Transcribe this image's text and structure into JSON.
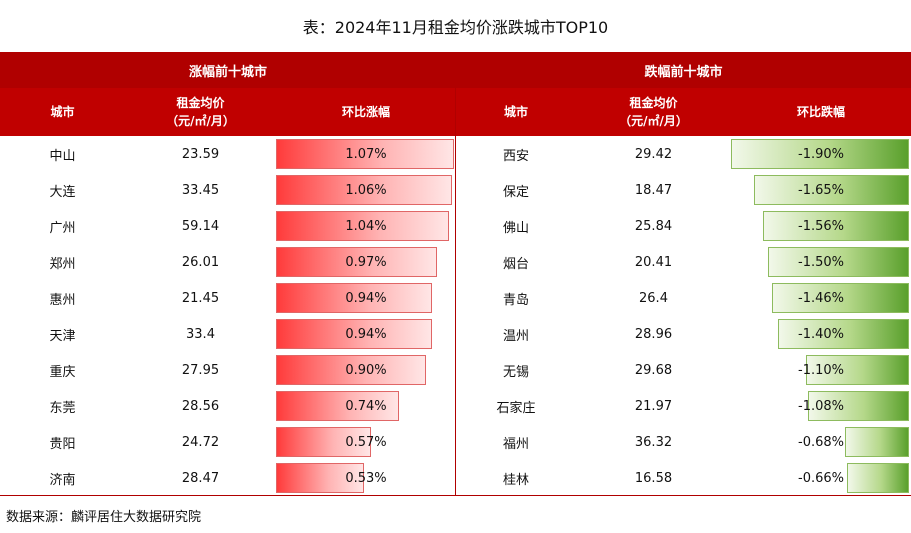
{
  "title": "表：2024年11月租金均价涨跌城市TOP10",
  "source": "数据来源：麟评居住大数据研究院",
  "colors": {
    "header_dark": "#b00000",
    "header": "#c00000",
    "rise": "#ff3b3b",
    "fall": "#5aa02c"
  },
  "chart_data": {
    "type": "table",
    "title": "表：2024年11月租金均价涨跌城市TOP10",
    "groups": [
      {
        "name": "涨幅前十城市",
        "columns": [
          "城市",
          "租金均价",
          "（元/㎡/月）",
          "环比涨幅"
        ],
        "rows": [
          {
            "city": "中山",
            "price": "23.59",
            "change": 1.07,
            "change_label": "1.07%"
          },
          {
            "city": "大连",
            "price": "33.45",
            "change": 1.06,
            "change_label": "1.06%"
          },
          {
            "city": "广州",
            "price": "59.14",
            "change": 1.04,
            "change_label": "1.04%"
          },
          {
            "city": "郑州",
            "price": "26.01",
            "change": 0.97,
            "change_label": "0.97%"
          },
          {
            "city": "惠州",
            "price": "21.45",
            "change": 0.94,
            "change_label": "0.94%"
          },
          {
            "city": "天津",
            "price": "33.4",
            "change": 0.94,
            "change_label": "0.94%"
          },
          {
            "city": "重庆",
            "price": "27.95",
            "change": 0.9,
            "change_label": "0.90%"
          },
          {
            "city": "东莞",
            "price": "28.56",
            "change": 0.74,
            "change_label": "0.74%"
          },
          {
            "city": "贵阳",
            "price": "24.72",
            "change": 0.57,
            "change_label": "0.57%"
          },
          {
            "city": "济南",
            "price": "28.47",
            "change": 0.53,
            "change_label": "0.53%"
          }
        ]
      },
      {
        "name": "跌幅前十城市",
        "columns": [
          "城市",
          "租金均价",
          "（元/㎡/月）",
          "环比跌幅"
        ],
        "rows": [
          {
            "city": "西安",
            "price": "29.42",
            "change": -1.9,
            "change_label": "-1.90%"
          },
          {
            "city": "保定",
            "price": "18.47",
            "change": -1.65,
            "change_label": "-1.65%"
          },
          {
            "city": "佛山",
            "price": "25.84",
            "change": -1.56,
            "change_label": "-1.56%"
          },
          {
            "city": "烟台",
            "price": "20.41",
            "change": -1.5,
            "change_label": "-1.50%"
          },
          {
            "city": "青岛",
            "price": "26.4",
            "change": -1.46,
            "change_label": "-1.46%"
          },
          {
            "city": "温州",
            "price": "28.96",
            "change": -1.4,
            "change_label": "-1.40%"
          },
          {
            "city": "无锡",
            "price": "29.68",
            "change": -1.1,
            "change_label": "-1.10%"
          },
          {
            "city": "石家庄",
            "price": "21.97",
            "change": -1.08,
            "change_label": "-1.08%"
          },
          {
            "city": "福州",
            "price": "36.32",
            "change": -0.68,
            "change_label": "-0.68%"
          },
          {
            "city": "桂林",
            "price": "16.58",
            "change": -0.66,
            "change_label": "-0.66%"
          }
        ]
      }
    ]
  }
}
